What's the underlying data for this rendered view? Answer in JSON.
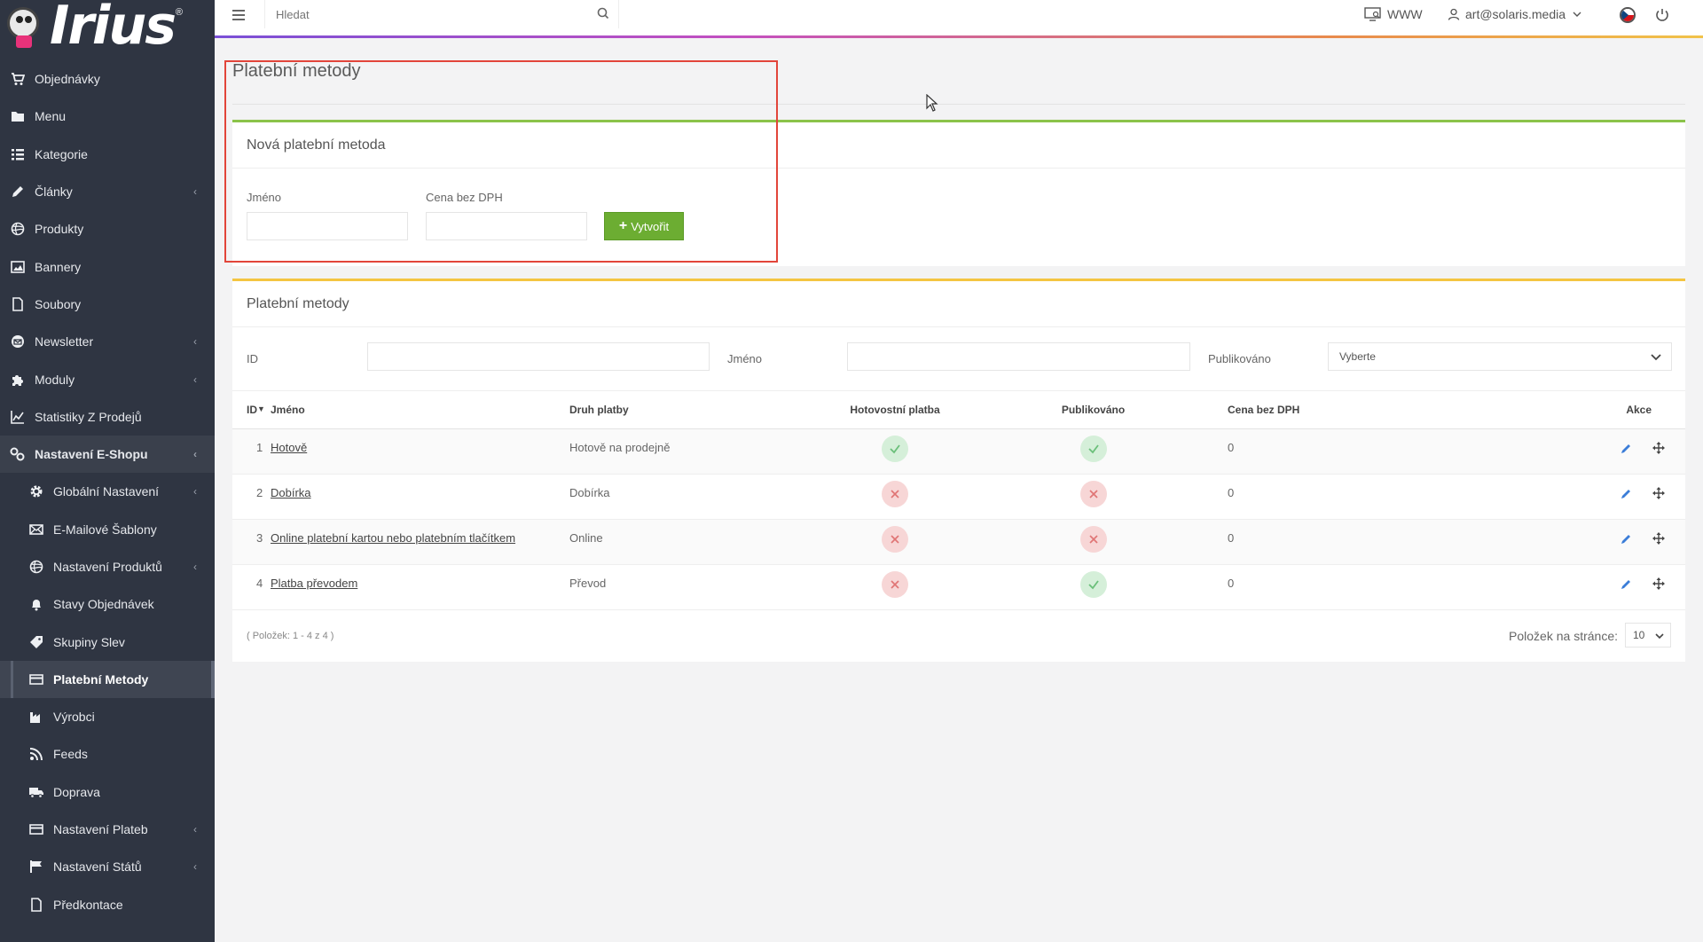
{
  "app": {
    "logo_text": "Irius"
  },
  "sidebar": {
    "items": [
      {
        "label": "Objednávky",
        "icon": "cart-icon",
        "name": "sidebar-item-objednavky"
      },
      {
        "label": "Menu",
        "icon": "folder-icon",
        "name": "sidebar-item-menu"
      },
      {
        "label": "Kategorie",
        "icon": "list-icon",
        "name": "sidebar-item-kategorie"
      },
      {
        "label": "Články",
        "icon": "pencil-icon",
        "name": "sidebar-item-clanky",
        "chevron": "‹"
      },
      {
        "label": "Produkty",
        "icon": "globe-icon",
        "name": "sidebar-item-produkty"
      },
      {
        "label": "Bannery",
        "icon": "image-icon",
        "name": "sidebar-item-bannery"
      },
      {
        "label": "Soubory",
        "icon": "file-icon",
        "name": "sidebar-item-soubory"
      },
      {
        "label": "Newsletter",
        "icon": "envelope-icon",
        "name": "sidebar-item-newsletter",
        "chevron": "‹"
      },
      {
        "label": "Moduly",
        "icon": "puzzle-icon",
        "name": "sidebar-item-moduly",
        "chevron": "‹"
      },
      {
        "label": "Statistiky Z Prodejů",
        "icon": "chart-icon",
        "name": "sidebar-item-statistiky"
      },
      {
        "label": "Nastavení E-Shopu",
        "icon": "settings-icon",
        "name": "sidebar-item-nastaveni-eshopu",
        "chevron": "‹"
      },
      {
        "label": "Globální Nastavení",
        "icon": "gear-icon",
        "name": "sidebar-item-globalni-nastaveni",
        "chevron": "‹"
      },
      {
        "label": "E-Mailové Šablony",
        "icon": "mail-template-icon",
        "name": "sidebar-item-emailove-sablony"
      },
      {
        "label": "Nastavení Produktů",
        "icon": "globe-icon",
        "name": "sidebar-item-nastaveni-produktu",
        "chevron": "‹"
      },
      {
        "label": "Stavy Objednávek",
        "icon": "bell-icon",
        "name": "sidebar-item-stavy-objednavek"
      },
      {
        "label": "Skupiny Slev",
        "icon": "tag-icon",
        "name": "sidebar-item-skupiny-slev"
      },
      {
        "label": "Platební Metody",
        "icon": "credit-card-icon",
        "name": "sidebar-item-platebni-metody"
      },
      {
        "label": "Výrobci",
        "icon": "factory-icon",
        "name": "sidebar-item-vyrobci"
      },
      {
        "label": "Feeds",
        "icon": "feed-icon",
        "name": "sidebar-item-feeds"
      },
      {
        "label": "Doprava",
        "icon": "truck-icon",
        "name": "sidebar-item-doprava"
      },
      {
        "label": "Nastavení Plateb",
        "icon": "credit-card-icon",
        "name": "sidebar-item-nastaveni-plateb",
        "chevron": "‹"
      },
      {
        "label": "Nastavení Států",
        "icon": "flag-icon",
        "name": "sidebar-item-nastaveni-statu",
        "chevron": "‹"
      },
      {
        "label": "Předkontace",
        "icon": "file-icon",
        "name": "sidebar-item-predkontace"
      }
    ]
  },
  "topbar": {
    "search_placeholder": "Hledat",
    "www_label": "WWW",
    "user_email": "art@solaris.media"
  },
  "page": {
    "title": "Platební metody"
  },
  "new_method": {
    "title": "Nová platební metoda",
    "name_label": "Jméno",
    "price_label": "Cena bez DPH",
    "name_value": "",
    "price_value": "",
    "create_label": "Vytvořit"
  },
  "methods": {
    "title": "Platební metody",
    "filters": {
      "id_label": "ID",
      "name_label": "Jméno",
      "published_label": "Publikováno",
      "published_value": "Vyberte"
    },
    "columns": {
      "id": "ID",
      "sort_indicator": "▼",
      "name": "Jméno",
      "payment_type": "Druh platby",
      "cash": "Hotovostní platba",
      "published": "Publikováno",
      "price": "Cena bez DPH",
      "actions": "Akce"
    },
    "rows": [
      {
        "id": "1",
        "name": "Hotově",
        "payment_type": "Hotově na prodejně",
        "cash": true,
        "published": true,
        "price": "0"
      },
      {
        "id": "2",
        "name": "Dobírka",
        "payment_type": "Dobírka",
        "cash": false,
        "published": false,
        "price": "0"
      },
      {
        "id": "3",
        "name": "Online platební kartou nebo platebním tlačítkem",
        "payment_type": "Online",
        "cash": false,
        "published": false,
        "price": "0"
      },
      {
        "id": "4",
        "name": "Platba převodem",
        "payment_type": "Převod",
        "cash": false,
        "published": true,
        "price": "0"
      }
    ],
    "count_text": "( Položek: 1 - 4 z 4 )",
    "per_page_label": "Položek na stránce:",
    "per_page_value": "10"
  },
  "colors": {
    "sidebar_bg": "#2f3542",
    "success": "#6cad32",
    "highlight": "#e2453a",
    "green_bar": "#8bc34a",
    "yellow_bar": "#f4c542"
  }
}
